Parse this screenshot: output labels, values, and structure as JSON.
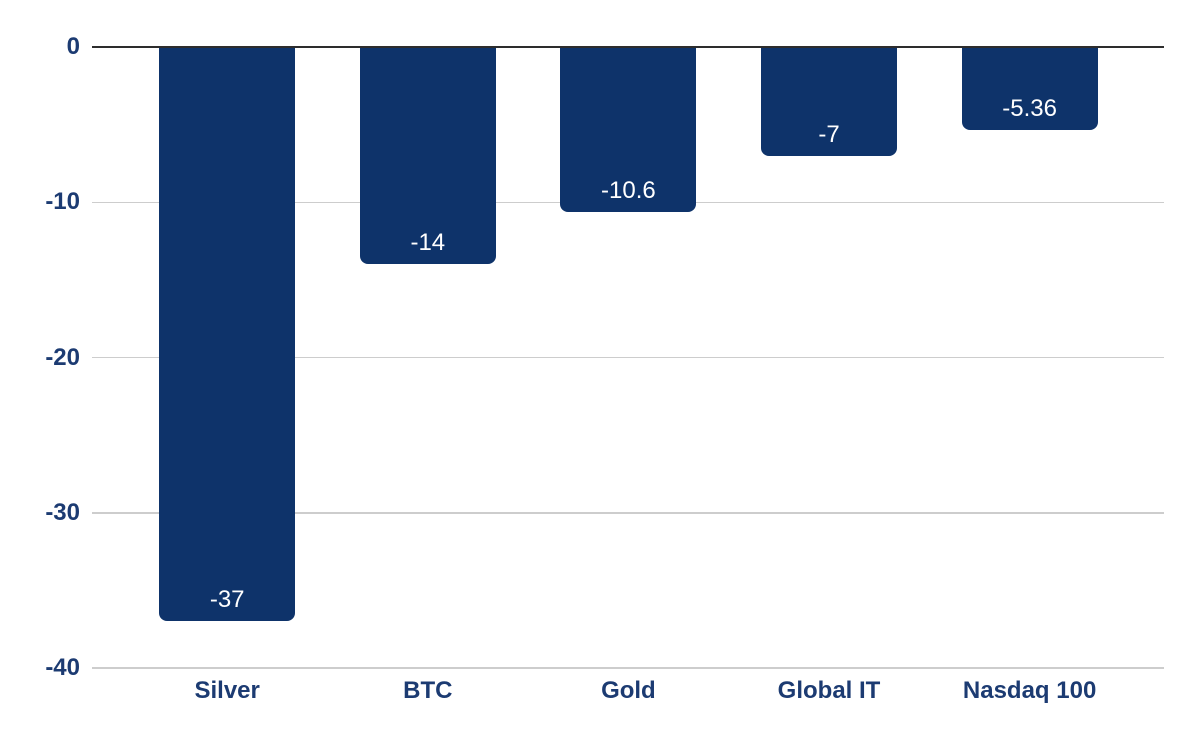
{
  "chart_data": {
    "type": "bar",
    "orientation": "vertical",
    "title": "",
    "xlabel": "",
    "ylabel": "",
    "categories": [
      "Silver",
      "BTC",
      "Gold",
      "Global IT",
      "Nasdaq 100"
    ],
    "values": [
      -37,
      -14,
      -10.6,
      -7,
      -5.36
    ],
    "value_labels": [
      "-37",
      "-14",
      "-10.6",
      "-7",
      "-5.36"
    ],
    "ylim": [
      -40,
      0
    ],
    "yticks": [
      0,
      -10,
      -20,
      -30,
      -40
    ],
    "ytick_labels": [
      "0",
      "-10",
      "-20",
      "-30",
      "-40"
    ],
    "grid": true,
    "legend": false,
    "value_labels_position": "inside-bottom",
    "colors": {
      "bar": "#0e336a",
      "axis_label": "#1c3b72",
      "value_label": "#ffffff",
      "zero_line": "#2d2d2d",
      "gridline": "#cdcdcd",
      "background": "#ffffff"
    }
  }
}
